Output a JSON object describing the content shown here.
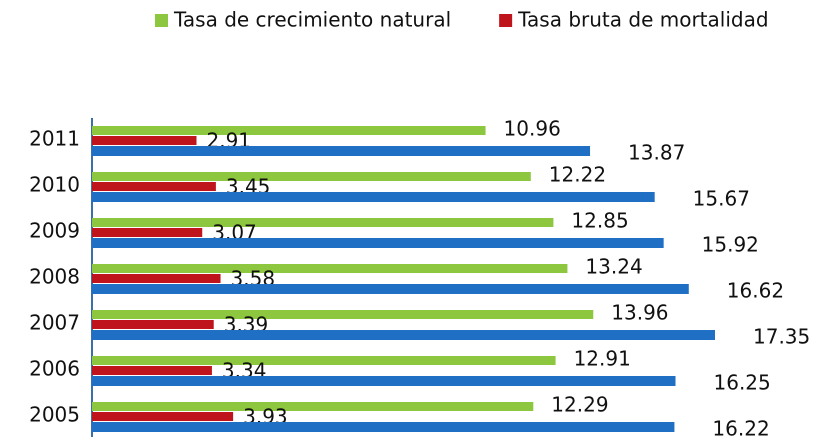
{
  "chart_data": {
    "type": "bar",
    "orientation": "horizontal",
    "categories": [
      "2011",
      "2010",
      "2009",
      "2008",
      "2007",
      "2006",
      "2005"
    ],
    "series": [
      {
        "name": "Tasa de crecimiento natural",
        "color": "#8dc63f",
        "values": [
          10.96,
          12.22,
          12.85,
          13.24,
          13.96,
          12.91,
          12.29
        ]
      },
      {
        "name": "Tasa bruta de mortalidad",
        "color": "#c0141c",
        "values": [
          2.91,
          3.45,
          3.07,
          3.58,
          3.39,
          3.34,
          3.93
        ]
      },
      {
        "color": "#1f6fc5",
        "values": [
          13.87,
          15.67,
          15.92,
          16.62,
          17.35,
          16.25,
          16.22
        ]
      }
    ],
    "legend": "top"
  }
}
